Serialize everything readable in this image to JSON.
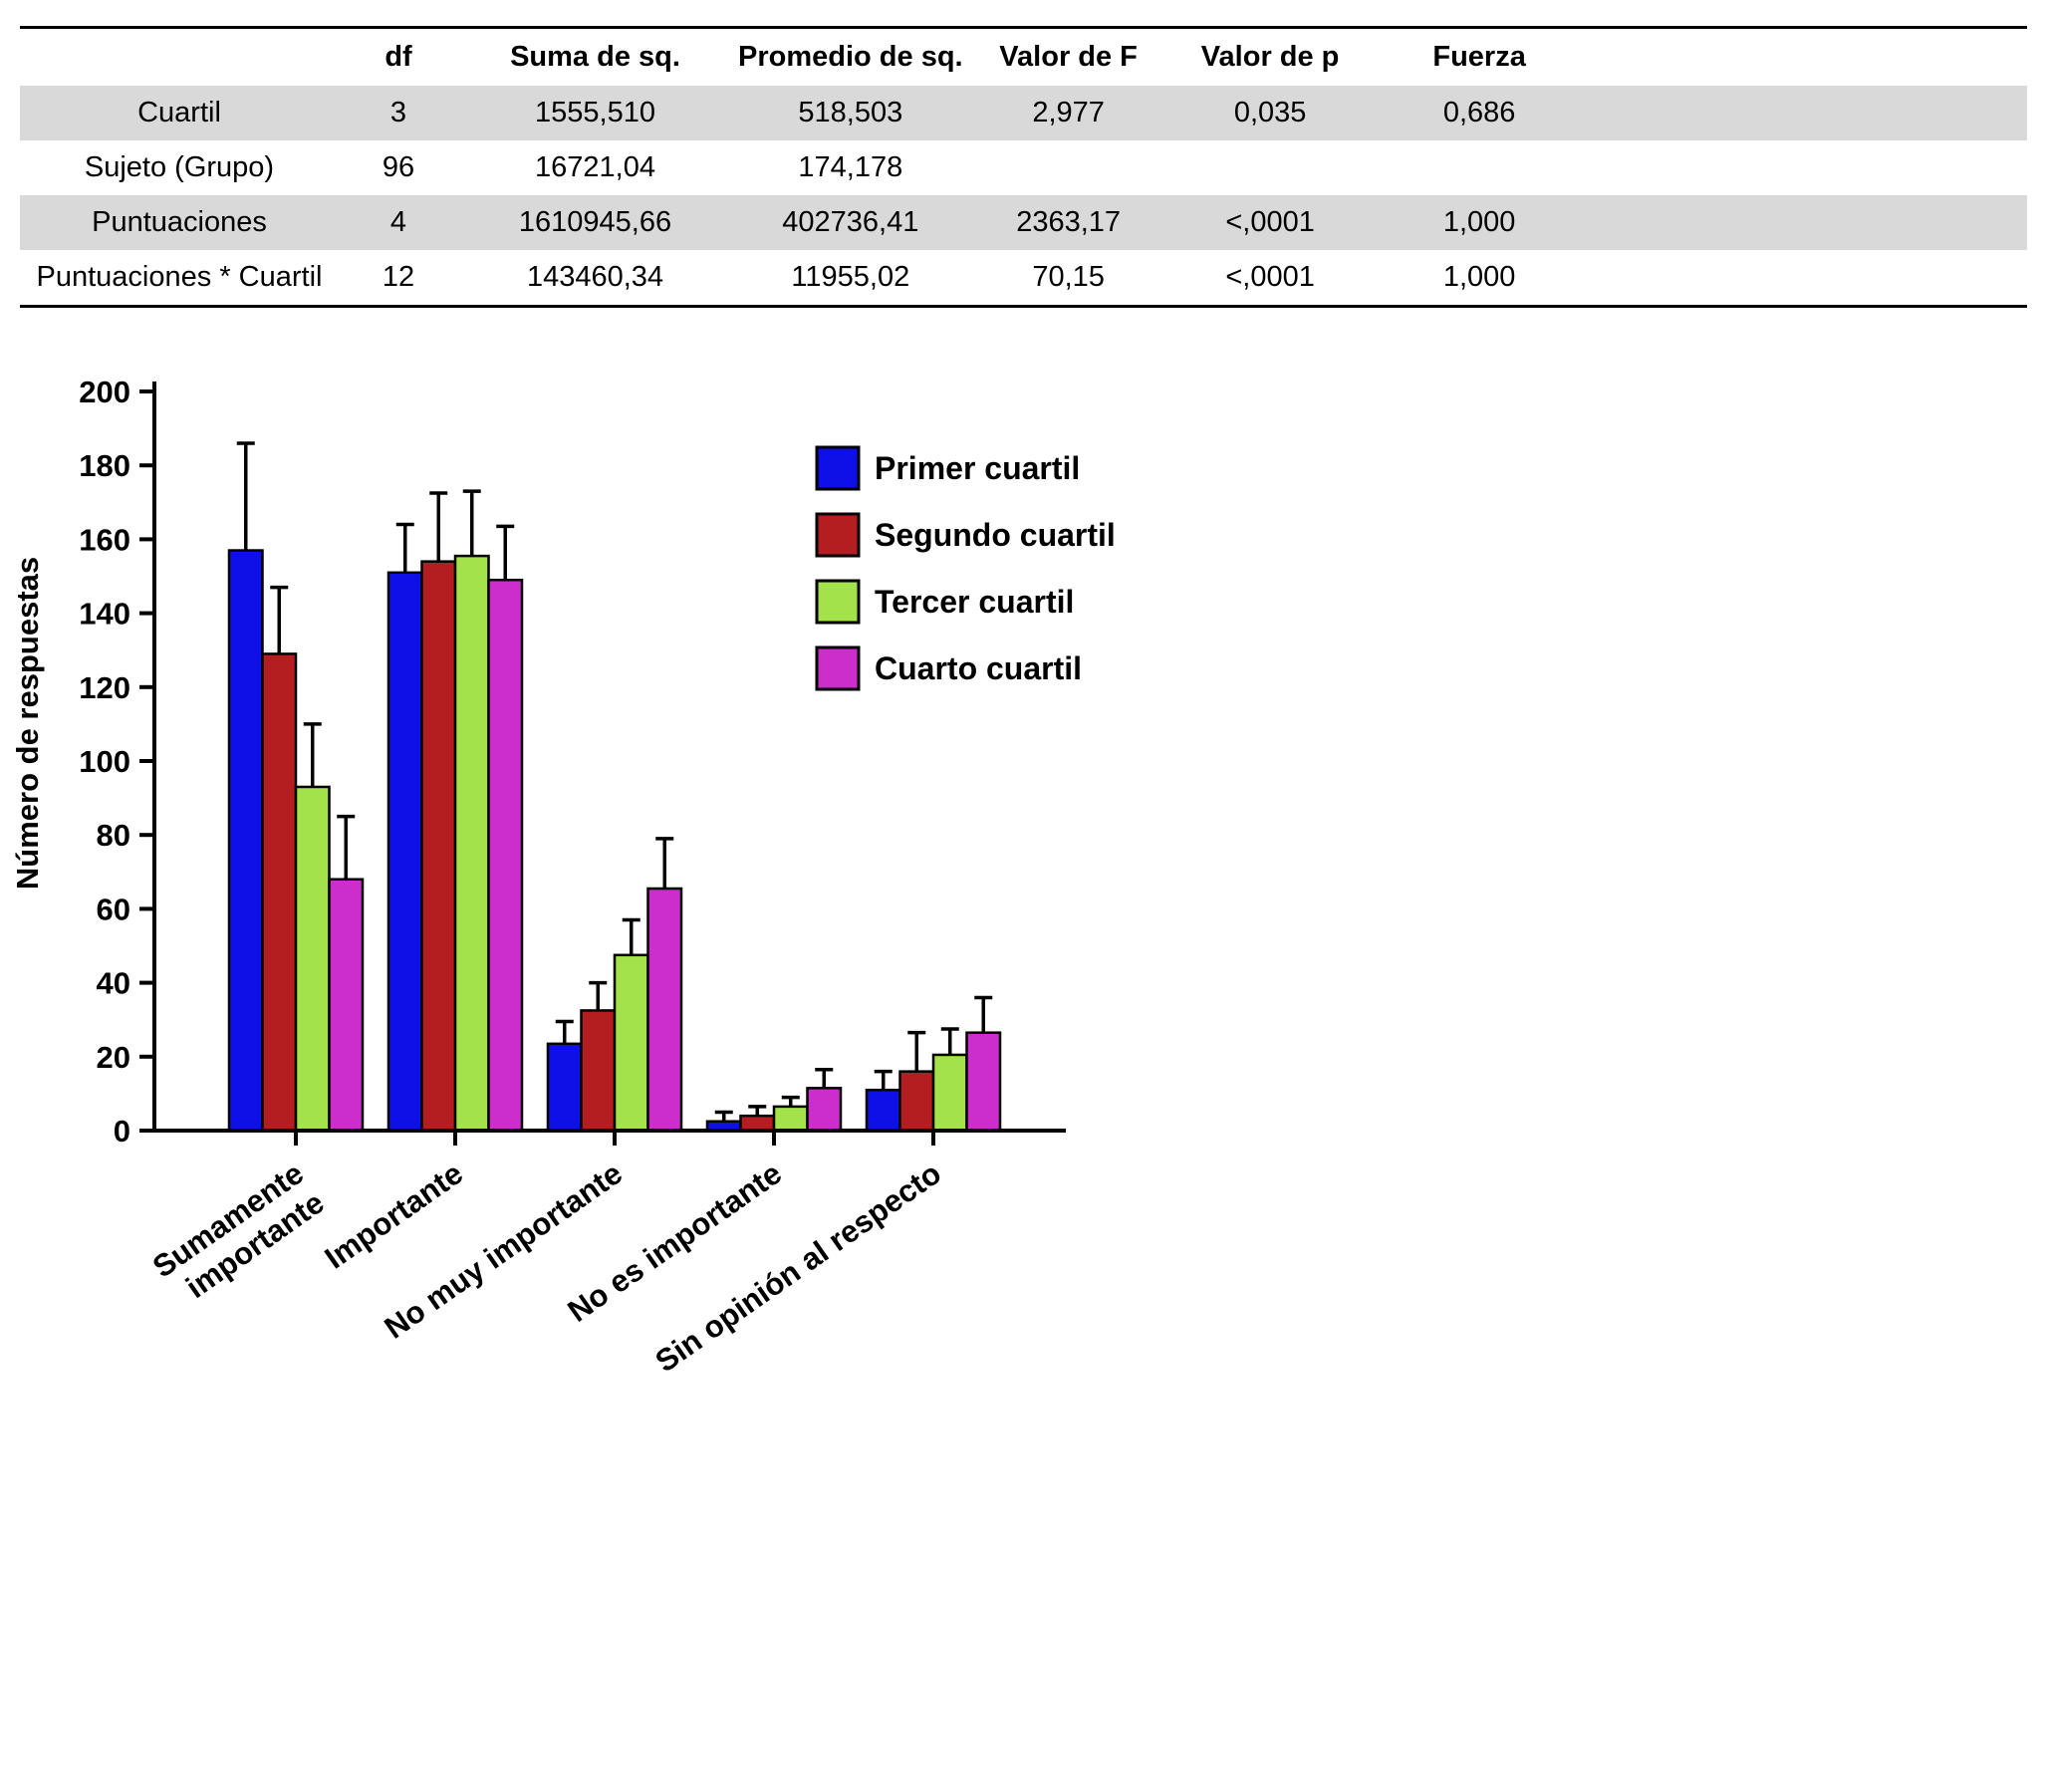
{
  "table": {
    "columns": [
      "",
      "df",
      "Suma de sq.",
      "Promedio de sq.",
      "Valor de F",
      "Valor de p",
      "Fuerza"
    ],
    "rows": [
      {
        "label": "Cuartil",
        "values": [
          "3",
          "1555,510",
          "518,503",
          "2,977",
          "0,035",
          "0,686"
        ],
        "shaded": true
      },
      {
        "label": "Sujeto (Grupo)",
        "values": [
          "96",
          "16721,04",
          "174,178",
          "",
          "",
          ""
        ],
        "shaded": false
      },
      {
        "label": "Puntuaciones",
        "values": [
          "4",
          "1610945,66",
          "402736,41",
          "2363,17",
          "<,0001",
          "1,000"
        ],
        "shaded": true
      },
      {
        "label": "Puntuaciones * Cuartil",
        "values": [
          "12",
          "143460,34",
          "11955,02",
          "70,15",
          "<,0001",
          "1,000"
        ],
        "shaded": false
      }
    ]
  },
  "chart_data": {
    "type": "bar",
    "title": "",
    "xlabel": "",
    "ylabel": "Número de respuestas",
    "ylim": [
      0,
      200
    ],
    "ytick_step": 20,
    "grid": false,
    "legend_position": "upper right",
    "categories": [
      "Sumamente\nimportante",
      "Importante",
      "No muy importante",
      "No es importante",
      "Sin opinión al respecto"
    ],
    "series": [
      {
        "name": "Primer cuartil",
        "color": "#0f10e8",
        "values": [
          157,
          151,
          23.5,
          2.5,
          11
        ],
        "errors": [
          29,
          13,
          6,
          2.5,
          5
        ]
      },
      {
        "name": "Segundo cuartil",
        "color": "#b51e20",
        "values": [
          129,
          154,
          32.5,
          4,
          16
        ],
        "errors": [
          18,
          18.5,
          7.5,
          2.5,
          10.5
        ]
      },
      {
        "name": "Tercer cuartil",
        "color": "#a4e24c",
        "values": [
          93,
          155.5,
          47.5,
          6.5,
          20.5
        ],
        "errors": [
          17,
          17.5,
          9.5,
          2.5,
          7
        ]
      },
      {
        "name": "Cuarto cuartil",
        "color": "#cb2ecb",
        "values": [
          68,
          149,
          65.5,
          11.5,
          26.5
        ],
        "errors": [
          17,
          14.5,
          13.5,
          5,
          9.5
        ]
      }
    ]
  }
}
